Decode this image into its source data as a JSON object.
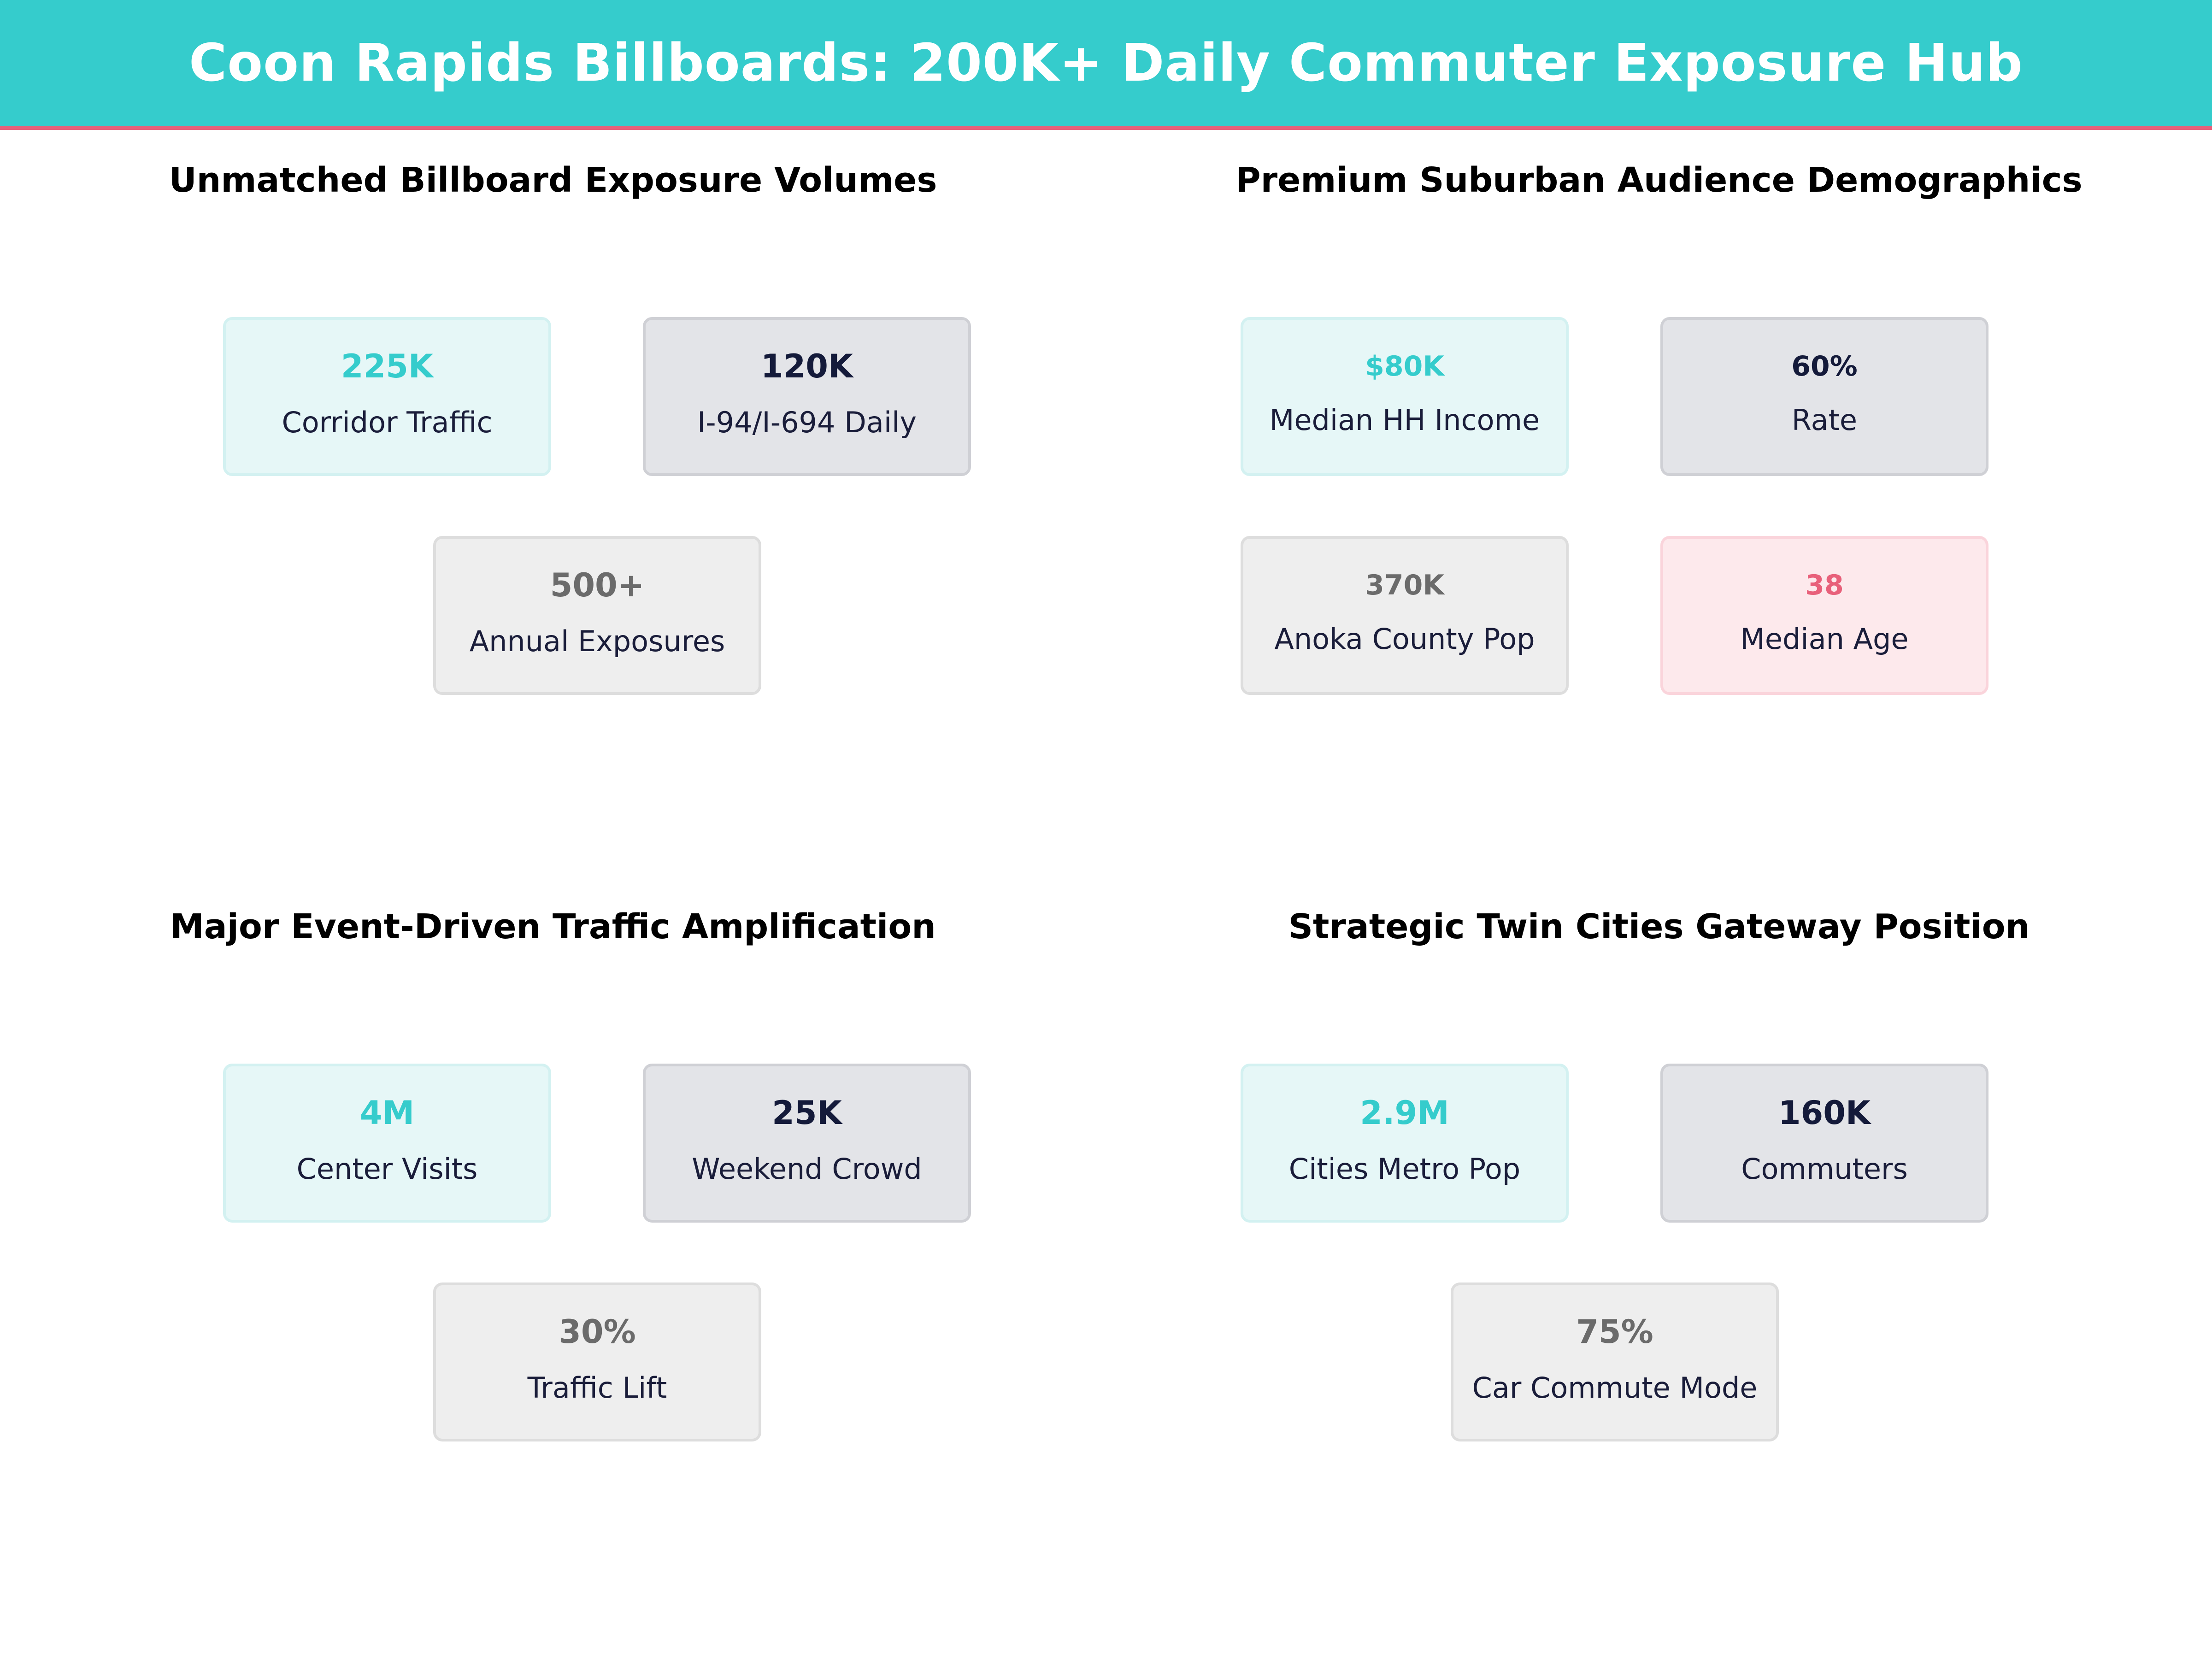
{
  "header": {
    "title": "Coon Rapids Billboards: 200K+ Daily Commuter Exposure Hub",
    "bg_color": "#35cccc",
    "accent_line_color": "#e8607a"
  },
  "panels": [
    {
      "title": "Unmatched Billboard Exposure Volumes",
      "cards": [
        {
          "value": "225K",
          "label": "Corridor Traffic"
        },
        {
          "value": "120K",
          "label": "I-94/I-694 Daily"
        },
        {
          "value": "500+",
          "label": "Annual Exposures"
        }
      ]
    },
    {
      "title": "Premium Suburban Audience Demographics",
      "cards": [
        {
          "value": "$80K",
          "label": "Median HH Income"
        },
        {
          "value": "60%",
          "label": "Rate"
        },
        {
          "value": "370K",
          "label": "Anoka County Pop"
        },
        {
          "value": "38",
          "label": "Median Age"
        }
      ]
    },
    {
      "title": "Major Event-Driven Traffic Amplification",
      "cards": [
        {
          "value": "4M",
          "label": "Center Visits"
        },
        {
          "value": "25K",
          "label": "Weekend Crowd"
        },
        {
          "value": "30%",
          "label": "Traffic Lift"
        }
      ]
    },
    {
      "title": "Strategic Twin Cities Gateway Position",
      "cards": [
        {
          "value": "2.9M",
          "label": "Cities Metro Pop"
        },
        {
          "value": "160K",
          "label": "Commuters"
        },
        {
          "value": "75%",
          "label": "Car Commute Mode"
        }
      ]
    }
  ],
  "colors": {
    "teal": "#35cccc",
    "navy": "#141a3a",
    "gray": "#6b6b6b",
    "pink": "#e8607a"
  }
}
